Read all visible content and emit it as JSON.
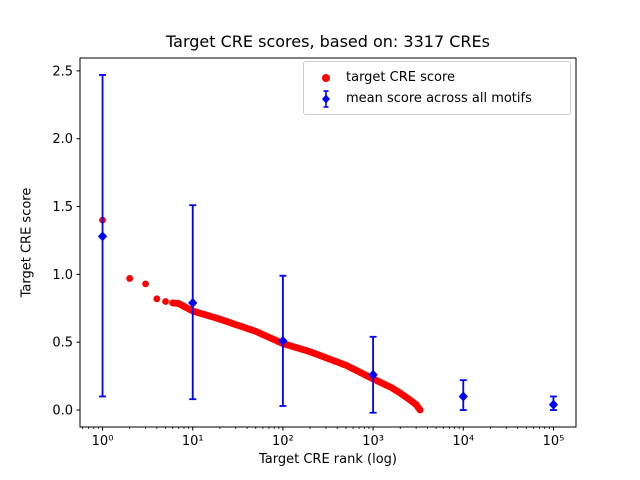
{
  "chart_data": {
    "type": "scatter",
    "title": "Target CRE scores, based on: 3317 CREs",
    "xlabel": "Target CRE rank (log)",
    "ylabel": "Target CRE score",
    "x_scale": "log",
    "xlim_log10": [
      -0.25,
      5.25
    ],
    "ylim": [
      -0.125,
      2.595
    ],
    "x_ticks": [
      1,
      10,
      100,
      1000,
      10000,
      100000
    ],
    "x_tick_labels": [
      "10⁰",
      "10¹",
      "10²",
      "10³",
      "10⁴",
      "10⁵"
    ],
    "y_ticks": [
      0.0,
      0.5,
      1.0,
      1.5,
      2.0,
      2.5
    ],
    "y_tick_labels": [
      "0.0",
      "0.5",
      "1.0",
      "1.5",
      "2.0",
      "2.5"
    ],
    "grid": false,
    "legend_position": "upper right",
    "legend": [
      {
        "label": "target CRE score",
        "marker": "circle",
        "color": "#ff0000"
      },
      {
        "label": "mean score across all motifs",
        "marker": "diamond-errorbar",
        "color": "#0000ff"
      }
    ],
    "series": [
      {
        "name": "target CRE score",
        "type": "scatter-curve",
        "color": "#ff0000",
        "n_points": 3317,
        "anchors": [
          [
            1,
            1.4
          ],
          [
            2,
            0.97
          ],
          [
            3,
            0.93
          ],
          [
            4,
            0.82
          ],
          [
            5,
            0.8
          ],
          [
            6,
            0.79
          ],
          [
            7,
            0.785
          ],
          [
            10,
            0.73
          ],
          [
            20,
            0.67
          ],
          [
            50,
            0.58
          ],
          [
            100,
            0.49
          ],
          [
            200,
            0.43
          ],
          [
            500,
            0.33
          ],
          [
            1000,
            0.23
          ],
          [
            1600,
            0.165
          ],
          [
            2000,
            0.125
          ],
          [
            2500,
            0.08
          ],
          [
            3000,
            0.04
          ],
          [
            3317,
            0.0
          ]
        ]
      },
      {
        "name": "mean score across all motifs",
        "type": "errorbar",
        "color": "#0000ff",
        "points": [
          {
            "x": 1,
            "y": 1.28,
            "lo": 0.1,
            "hi": 2.47
          },
          {
            "x": 10,
            "y": 0.79,
            "lo": 0.08,
            "hi": 1.51
          },
          {
            "x": 100,
            "y": 0.51,
            "lo": 0.03,
            "hi": 0.99
          },
          {
            "x": 1000,
            "y": 0.26,
            "lo": -0.02,
            "hi": 0.54
          },
          {
            "x": 10000,
            "y": 0.1,
            "lo": 0.0,
            "hi": 0.22
          },
          {
            "x": 100000,
            "y": 0.04,
            "lo": 0.0,
            "hi": 0.1
          }
        ]
      }
    ]
  }
}
